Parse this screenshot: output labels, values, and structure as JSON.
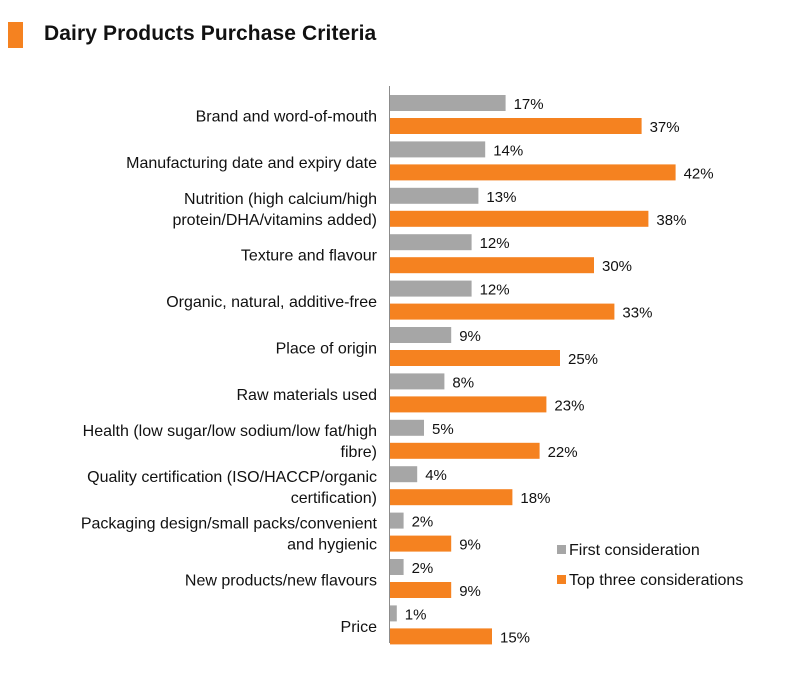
{
  "page": {
    "title": "Dairy Products Purchase Criteria",
    "accent_color": "#f58220",
    "gray_color": "#a6a6a6"
  },
  "chart_data": {
    "type": "bar",
    "orientation": "horizontal",
    "title": "Dairy Products Purchase Criteria",
    "categories": [
      [
        "Brand and word-of-mouth"
      ],
      [
        "Manufacturing date and expiry date"
      ],
      [
        "Nutrition (high calcium/high",
        "protein/DHA/vitamins added)"
      ],
      [
        "Texture and flavour"
      ],
      [
        "Organic, natural, additive-free"
      ],
      [
        "Place of origin"
      ],
      [
        "Raw materials used"
      ],
      [
        "Health (low sugar/low sodium/low fat/high",
        "fibre)"
      ],
      [
        "Quality certification (ISO/HACCP/organic",
        "certification)"
      ],
      [
        "Packaging design/small packs/convenient",
        "and hygienic"
      ],
      [
        "New products/new flavours"
      ],
      [
        "Price"
      ]
    ],
    "series": [
      {
        "name": "First consideration",
        "color": "#a6a6a6",
        "values": [
          17,
          14,
          13,
          12,
          12,
          9,
          8,
          5,
          4,
          2,
          2,
          1
        ],
        "labels": [
          "17%",
          "14%",
          "13%",
          "12%",
          "12%",
          "9%",
          "8%",
          "5%",
          "4%",
          "2%",
          "2%",
          "1%"
        ]
      },
      {
        "name": "Top three considerations",
        "color": "#f58220",
        "values": [
          37,
          42,
          38,
          30,
          33,
          25,
          23,
          22,
          18,
          9,
          9,
          15
        ],
        "labels": [
          "37%",
          "42%",
          "38%",
          "30%",
          "33%",
          "25%",
          "23%",
          "22%",
          "18%",
          "9%",
          "9%",
          "15%"
        ]
      }
    ],
    "value_unit": "%",
    "xlim": [
      0,
      45
    ],
    "grid": false,
    "legend_position": "bottom-right"
  }
}
